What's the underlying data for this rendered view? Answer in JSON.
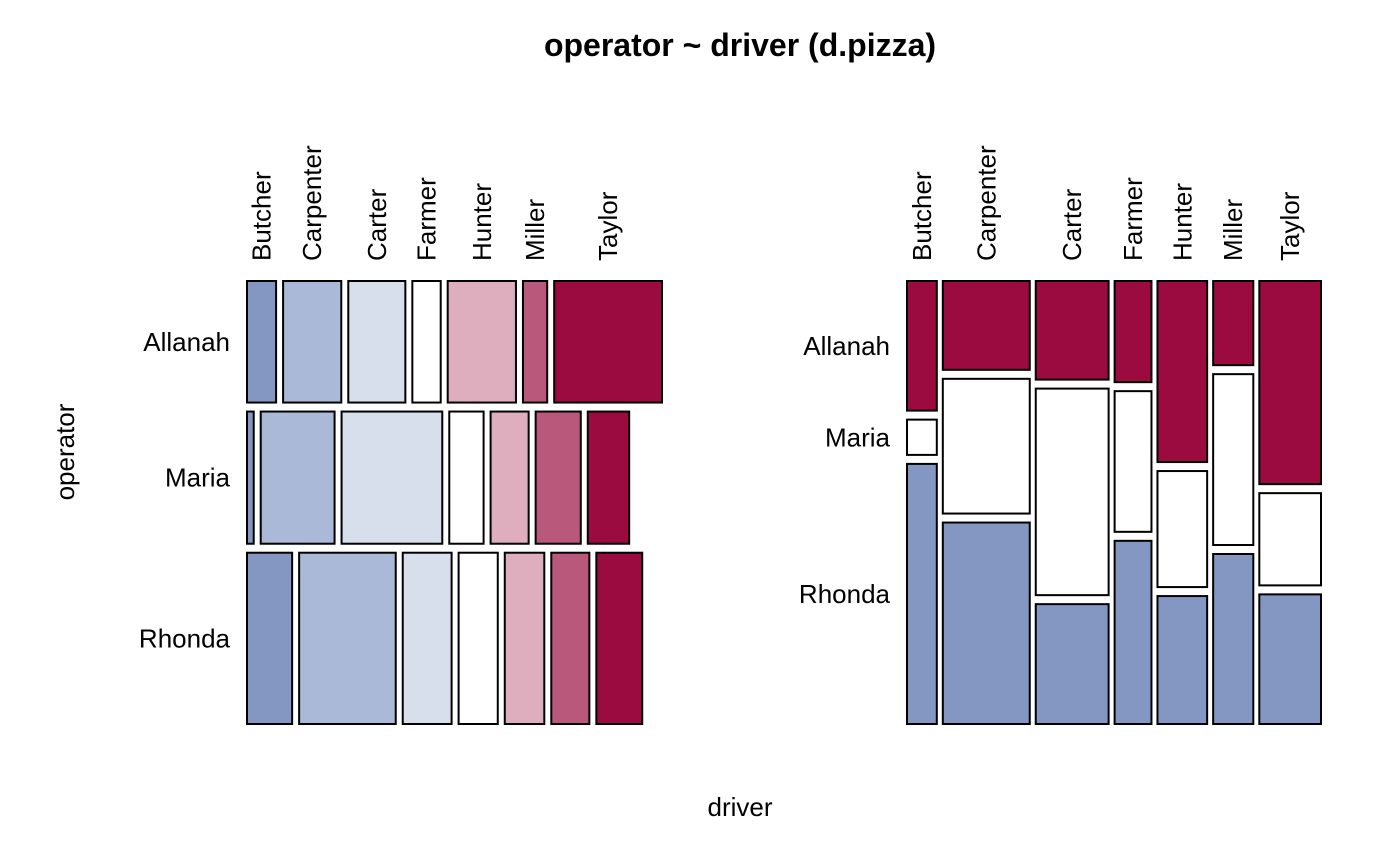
{
  "title": "operator ~ driver (d.pizza)",
  "xlabel": "driver",
  "ylabel": "operator",
  "palette": [
    "#8497C3",
    "#AAB9D7",
    "#D7DEEC",
    "#FFFFFF",
    "#DEAEBF",
    "#BA587C",
    "#9B0B40"
  ],
  "chart_data": [
    {
      "type": "mosaic",
      "title": "",
      "description": "Mosaic of driver within each operator row",
      "rows": [
        "Allanah",
        "Maria",
        "Rhonda"
      ],
      "columns": [
        "Butcher",
        "Carpenter",
        "Carter",
        "Farmer",
        "Hunter",
        "Miller",
        "Taylor"
      ],
      "row_proportions": [
        0.286,
        0.311,
        0.403
      ],
      "cell_proportions": [
        [
          0.078,
          0.156,
          0.153,
          0.076,
          0.183,
          0.065,
          0.289
        ],
        [
          0.018,
          0.198,
          0.27,
          0.092,
          0.102,
          0.121,
          0.111
        ],
        [
          0.121,
          0.259,
          0.131,
          0.105,
          0.106,
          0.102,
          0.123
        ]
      ],
      "cell_colors": [
        [
          "#8497C3",
          "#AAB9D7",
          "#D7DEEC",
          "#FFFFFF",
          "#DEAEBF",
          "#BA587C",
          "#9B0B40"
        ],
        [
          "#8497C3",
          "#AAB9D7",
          "#D7DEEC",
          "#FFFFFF",
          "#DEAEBF",
          "#BA587C",
          "#9B0B40"
        ],
        [
          "#8497C3",
          "#AAB9D7",
          "#D7DEEC",
          "#FFFFFF",
          "#DEAEBF",
          "#BA587C",
          "#9B0B40"
        ]
      ]
    },
    {
      "type": "mosaic",
      "title": "",
      "description": "Mosaic of operator within each driver column",
      "rows": [
        "Allanah",
        "Maria",
        "Rhonda"
      ],
      "columns": [
        "Butcher",
        "Carpenter",
        "Carter",
        "Farmer",
        "Hunter",
        "Miller",
        "Taylor"
      ],
      "column_proportions": [
        0.072,
        0.21,
        0.176,
        0.089,
        0.12,
        0.097,
        0.149
      ],
      "column_proportions_note": "remaining width is spacing between columns",
      "cell_proportions": [
        [
          0.305,
          0.083,
          0.612
        ],
        [
          0.209,
          0.317,
          0.474
        ],
        [
          0.232,
          0.486,
          0.282
        ],
        [
          0.238,
          0.331,
          0.431
        ],
        [
          0.426,
          0.273,
          0.301
        ],
        [
          0.198,
          0.402,
          0.4
        ],
        [
          0.478,
          0.217,
          0.305
        ]
      ],
      "cell_colors": [
        [
          "#9B0B40",
          "#FFFFFF",
          "#8497C3"
        ],
        [
          "#9B0B40",
          "#FFFFFF",
          "#8497C3"
        ],
        [
          "#9B0B40",
          "#FFFFFF",
          "#8497C3"
        ],
        [
          "#9B0B40",
          "#FFFFFF",
          "#8497C3"
        ],
        [
          "#9B0B40",
          "#FFFFFF",
          "#8497C3"
        ],
        [
          "#9B0B40",
          "#FFFFFF",
          "#8497C3"
        ],
        [
          "#9B0B40",
          "#FFFFFF",
          "#8497C3"
        ]
      ]
    }
  ]
}
